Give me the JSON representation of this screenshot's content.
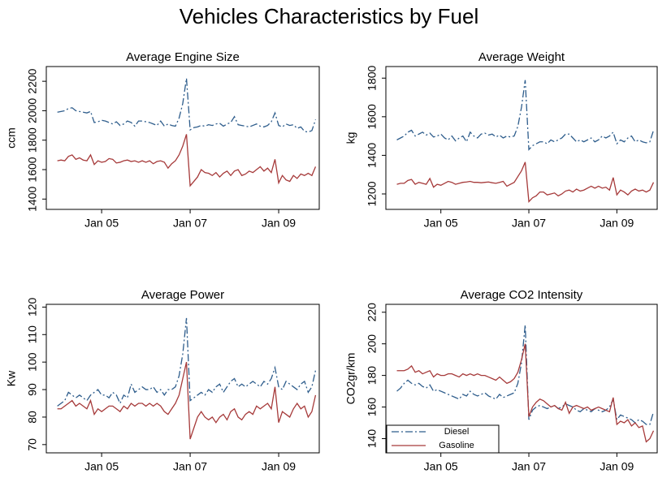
{
  "title": "Vehicles Characteristics by Fuel",
  "chart_data": [
    {
      "type": "line",
      "title": "Average Engine Size",
      "ylabel": "ccm",
      "x": [
        "2004-01",
        "2004-02",
        "2004-03",
        "2004-04",
        "2004-05",
        "2004-06",
        "2004-07",
        "2004-08",
        "2004-09",
        "2004-10",
        "2004-11",
        "2004-12",
        "2005-01",
        "2005-02",
        "2005-03",
        "2005-04",
        "2005-05",
        "2005-06",
        "2005-07",
        "2005-08",
        "2005-09",
        "2005-10",
        "2005-11",
        "2005-12",
        "2006-01",
        "2006-02",
        "2006-03",
        "2006-04",
        "2006-05",
        "2006-06",
        "2006-07",
        "2006-08",
        "2006-09",
        "2006-10",
        "2006-11",
        "2006-12",
        "2007-01",
        "2007-02",
        "2007-03",
        "2007-04",
        "2007-05",
        "2007-06",
        "2007-07",
        "2007-08",
        "2007-09",
        "2007-10",
        "2007-11",
        "2007-12",
        "2008-01",
        "2008-02",
        "2008-03",
        "2008-04",
        "2008-05",
        "2008-06",
        "2008-07",
        "2008-08",
        "2008-09",
        "2008-10",
        "2008-11",
        "2008-12",
        "2009-01",
        "2009-02",
        "2009-03",
        "2009-04",
        "2009-05",
        "2009-06",
        "2009-07",
        "2009-08",
        "2009-09",
        "2009-10",
        "2009-11"
      ],
      "xlim": [
        "2003-10",
        "2009-12"
      ],
      "xticks": [
        {
          "value": "2005-01",
          "label": "Jan 05"
        },
        {
          "value": "2007-01",
          "label": "Jan 07"
        },
        {
          "value": "2009-01",
          "label": "Jan 09"
        }
      ],
      "ylim": [
        1330,
        2300
      ],
      "yticks": [
        1400,
        1600,
        1800,
        2000,
        2200
      ],
      "series": [
        {
          "name": "Diesel",
          "color": "#2e5d8c",
          "dash": "dash-dot",
          "values": [
            1990,
            1995,
            2000,
            2015,
            2020,
            2000,
            1995,
            1990,
            1985,
            1995,
            1920,
            1925,
            1935,
            1930,
            1920,
            1910,
            1925,
            1900,
            1910,
            1930,
            1920,
            1895,
            1930,
            1930,
            1925,
            1920,
            1910,
            1900,
            1930,
            1895,
            1910,
            1900,
            1895,
            1950,
            2050,
            2220,
            1870,
            1885,
            1890,
            1900,
            1895,
            1905,
            1900,
            1910,
            1915,
            1895,
            1910,
            1920,
            1960,
            1905,
            1900,
            1895,
            1890,
            1900,
            1910,
            1895,
            1890,
            1900,
            1925,
            1985,
            1900,
            1890,
            1910,
            1900,
            1905,
            1880,
            1890,
            1860,
            1855,
            1865,
            1940
          ]
        },
        {
          "name": "Gasoline",
          "color": "#a63a3a",
          "dash": "solid",
          "values": [
            1660,
            1665,
            1660,
            1690,
            1700,
            1670,
            1680,
            1665,
            1660,
            1700,
            1635,
            1660,
            1650,
            1655,
            1675,
            1670,
            1645,
            1650,
            1660,
            1665,
            1655,
            1660,
            1650,
            1660,
            1650,
            1660,
            1640,
            1655,
            1660,
            1650,
            1610,
            1640,
            1660,
            1700,
            1760,
            1840,
            1490,
            1520,
            1550,
            1600,
            1580,
            1575,
            1560,
            1580,
            1550,
            1575,
            1590,
            1560,
            1590,
            1600,
            1560,
            1570,
            1590,
            1580,
            1600,
            1620,
            1590,
            1610,
            1580,
            1670,
            1510,
            1560,
            1530,
            1520,
            1560,
            1540,
            1570,
            1560,
            1575,
            1560,
            1620
          ]
        }
      ]
    },
    {
      "type": "line",
      "title": "Average Weight",
      "ylabel": "kg",
      "x": [
        "2004-01",
        "2004-02",
        "2004-03",
        "2004-04",
        "2004-05",
        "2004-06",
        "2004-07",
        "2004-08",
        "2004-09",
        "2004-10",
        "2004-11",
        "2004-12",
        "2005-01",
        "2005-02",
        "2005-03",
        "2005-04",
        "2005-05",
        "2005-06",
        "2005-07",
        "2005-08",
        "2005-09",
        "2005-10",
        "2005-11",
        "2005-12",
        "2006-01",
        "2006-02",
        "2006-03",
        "2006-04",
        "2006-05",
        "2006-06",
        "2006-07",
        "2006-08",
        "2006-09",
        "2006-10",
        "2006-11",
        "2006-12",
        "2007-01",
        "2007-02",
        "2007-03",
        "2007-04",
        "2007-05",
        "2007-06",
        "2007-07",
        "2007-08",
        "2007-09",
        "2007-10",
        "2007-11",
        "2007-12",
        "2008-01",
        "2008-02",
        "2008-03",
        "2008-04",
        "2008-05",
        "2008-06",
        "2008-07",
        "2008-08",
        "2008-09",
        "2008-10",
        "2008-11",
        "2008-12",
        "2009-01",
        "2009-02",
        "2009-03",
        "2009-04",
        "2009-05",
        "2009-06",
        "2009-07",
        "2009-08",
        "2009-09",
        "2009-10",
        "2009-11"
      ],
      "xlim": [
        "2003-10",
        "2009-12"
      ],
      "xticks": [
        {
          "value": "2005-01",
          "label": "Jan 05"
        },
        {
          "value": "2007-01",
          "label": "Jan 07"
        },
        {
          "value": "2009-01",
          "label": "Jan 09"
        }
      ],
      "ylim": [
        1120,
        1860
      ],
      "yticks": [
        1200,
        1400,
        1600,
        1800
      ],
      "series": [
        {
          "name": "Diesel",
          "color": "#2e5d8c",
          "dash": "dash-dot",
          "values": [
            1480,
            1490,
            1500,
            1520,
            1530,
            1500,
            1510,
            1520,
            1505,
            1515,
            1495,
            1500,
            1510,
            1490,
            1480,
            1500,
            1475,
            1490,
            1500,
            1470,
            1520,
            1500,
            1490,
            1510,
            1515,
            1505,
            1510,
            1495,
            1505,
            1490,
            1500,
            1495,
            1500,
            1550,
            1650,
            1790,
            1430,
            1450,
            1460,
            1470,
            1470,
            1460,
            1480,
            1470,
            1480,
            1490,
            1510,
            1510,
            1490,
            1470,
            1480,
            1470,
            1480,
            1490,
            1470,
            1480,
            1500,
            1490,
            1500,
            1520,
            1460,
            1480,
            1470,
            1490,
            1500,
            1470,
            1480,
            1470,
            1465,
            1470,
            1530
          ]
        },
        {
          "name": "Gasoline",
          "color": "#a63a3a",
          "dash": "solid",
          "values": [
            1250,
            1255,
            1255,
            1270,
            1275,
            1250,
            1260,
            1255,
            1250,
            1280,
            1235,
            1250,
            1245,
            1255,
            1265,
            1260,
            1250,
            1255,
            1260,
            1262,
            1265,
            1260,
            1260,
            1258,
            1260,
            1262,
            1258,
            1255,
            1260,
            1265,
            1240,
            1250,
            1260,
            1290,
            1320,
            1365,
            1160,
            1180,
            1190,
            1210,
            1210,
            1195,
            1200,
            1205,
            1190,
            1200,
            1215,
            1220,
            1210,
            1225,
            1215,
            1220,
            1230,
            1240,
            1230,
            1240,
            1230,
            1235,
            1220,
            1285,
            1195,
            1220,
            1210,
            1195,
            1215,
            1225,
            1215,
            1220,
            1210,
            1220,
            1260
          ]
        }
      ]
    },
    {
      "type": "line",
      "title": "Average Power",
      "ylabel": "Kw",
      "x": [
        "2004-01",
        "2004-02",
        "2004-03",
        "2004-04",
        "2004-05",
        "2004-06",
        "2004-07",
        "2004-08",
        "2004-09",
        "2004-10",
        "2004-11",
        "2004-12",
        "2005-01",
        "2005-02",
        "2005-03",
        "2005-04",
        "2005-05",
        "2005-06",
        "2005-07",
        "2005-08",
        "2005-09",
        "2005-10",
        "2005-11",
        "2005-12",
        "2006-01",
        "2006-02",
        "2006-03",
        "2006-04",
        "2006-05",
        "2006-06",
        "2006-07",
        "2006-08",
        "2006-09",
        "2006-10",
        "2006-11",
        "2006-12",
        "2007-01",
        "2007-02",
        "2007-03",
        "2007-04",
        "2007-05",
        "2007-06",
        "2007-07",
        "2007-08",
        "2007-09",
        "2007-10",
        "2007-11",
        "2007-12",
        "2008-01",
        "2008-02",
        "2008-03",
        "2008-04",
        "2008-05",
        "2008-06",
        "2008-07",
        "2008-08",
        "2008-09",
        "2008-10",
        "2008-11",
        "2008-12",
        "2009-01",
        "2009-02",
        "2009-03",
        "2009-04",
        "2009-05",
        "2009-06",
        "2009-07",
        "2009-08",
        "2009-09",
        "2009-10",
        "2009-11"
      ],
      "xlim": [
        "2003-10",
        "2009-12"
      ],
      "xticks": [
        {
          "value": "2005-01",
          "label": "Jan 05"
        },
        {
          "value": "2007-01",
          "label": "Jan 07"
        },
        {
          "value": "2009-01",
          "label": "Jan 09"
        }
      ],
      "ylim": [
        67,
        121
      ],
      "yticks": [
        70,
        80,
        90,
        100,
        110,
        120
      ],
      "series": [
        {
          "name": "Diesel",
          "color": "#2e5d8c",
          "dash": "dash-dot",
          "values": [
            84,
            85,
            86,
            89,
            88,
            87,
            88,
            87,
            86,
            88,
            89,
            90,
            88,
            88,
            87,
            89,
            88,
            85,
            88,
            87,
            92,
            89,
            90,
            91,
            90,
            90,
            91,
            89,
            90,
            88,
            90,
            90,
            91,
            95,
            103,
            116,
            86,
            87,
            88,
            89,
            88,
            90,
            89,
            91,
            92,
            89,
            91,
            93,
            94,
            91,
            92,
            91,
            92,
            93,
            92,
            91,
            93,
            92,
            94,
            98,
            91,
            90,
            93,
            92,
            91,
            90,
            92,
            93,
            89,
            91,
            97
          ]
        },
        {
          "name": "Gasoline",
          "color": "#a63a3a",
          "dash": "solid",
          "values": [
            83,
            83,
            84,
            85,
            86,
            84,
            85,
            84,
            83,
            86,
            81,
            83,
            82,
            83,
            84,
            84,
            83,
            82,
            84,
            83,
            85,
            84,
            85,
            85,
            84,
            85,
            84,
            85,
            84,
            82,
            81,
            83,
            85,
            88,
            94,
            100,
            72,
            76,
            80,
            82,
            80,
            79,
            80,
            78,
            80,
            81,
            79,
            82,
            83,
            80,
            79,
            81,
            82,
            81,
            84,
            83,
            84,
            85,
            83,
            91,
            78,
            82,
            81,
            80,
            83,
            85,
            83,
            84,
            80,
            82,
            88
          ]
        }
      ]
    },
    {
      "type": "line",
      "title": "Average CO2 Intensity",
      "ylabel": "CO2gr/km",
      "legend": "lower left",
      "x": [
        "2004-01",
        "2004-02",
        "2004-03",
        "2004-04",
        "2004-05",
        "2004-06",
        "2004-07",
        "2004-08",
        "2004-09",
        "2004-10",
        "2004-11",
        "2004-12",
        "2005-01",
        "2005-02",
        "2005-03",
        "2005-04",
        "2005-05",
        "2005-06",
        "2005-07",
        "2005-08",
        "2005-09",
        "2005-10",
        "2005-11",
        "2005-12",
        "2006-01",
        "2006-02",
        "2006-03",
        "2006-04",
        "2006-05",
        "2006-06",
        "2006-07",
        "2006-08",
        "2006-09",
        "2006-10",
        "2006-11",
        "2006-12",
        "2007-01",
        "2007-02",
        "2007-03",
        "2007-04",
        "2007-05",
        "2007-06",
        "2007-07",
        "2007-08",
        "2007-09",
        "2007-10",
        "2007-11",
        "2007-12",
        "2008-01",
        "2008-02",
        "2008-03",
        "2008-04",
        "2008-05",
        "2008-06",
        "2008-07",
        "2008-08",
        "2008-09",
        "2008-10",
        "2008-11",
        "2008-12",
        "2009-01",
        "2009-02",
        "2009-03",
        "2009-04",
        "2009-05",
        "2009-06",
        "2009-07",
        "2009-08",
        "2009-09",
        "2009-10",
        "2009-11"
      ],
      "xlim": [
        "2003-10",
        "2009-12"
      ],
      "xticks": [
        {
          "value": "2005-01",
          "label": "Jan 05"
        },
        {
          "value": "2007-01",
          "label": "Jan 07"
        },
        {
          "value": "2009-01",
          "label": "Jan 09"
        }
      ],
      "ylim": [
        131,
        225
      ],
      "yticks": [
        140,
        160,
        180,
        200,
        220
      ],
      "series": [
        {
          "name": "Diesel",
          "color": "#2e5d8c",
          "dash": "dash-dot",
          "values": [
            170,
            172,
            175,
            177,
            175,
            174,
            175,
            173,
            172,
            174,
            170,
            171,
            170,
            169,
            168,
            167,
            166,
            165,
            168,
            167,
            170,
            168,
            167,
            168,
            169,
            167,
            166,
            165,
            168,
            166,
            167,
            168,
            169,
            175,
            188,
            212,
            152,
            158,
            160,
            161,
            160,
            159,
            160,
            161,
            159,
            160,
            162,
            161,
            160,
            158,
            157,
            159,
            158,
            157,
            159,
            158,
            157,
            158,
            160,
            165,
            152,
            155,
            154,
            153,
            152,
            150,
            152,
            151,
            149,
            149,
            157
          ]
        },
        {
          "name": "Gasoline",
          "color": "#a63a3a",
          "dash": "solid",
          "values": [
            183,
            183,
            183,
            184,
            186,
            182,
            183,
            181,
            182,
            183,
            179,
            181,
            180,
            180,
            181,
            181,
            180,
            179,
            181,
            180,
            181,
            180,
            181,
            180,
            180,
            179,
            178,
            177,
            179,
            177,
            175,
            176,
            178,
            182,
            190,
            200,
            154,
            160,
            163,
            165,
            164,
            162,
            160,
            161,
            159,
            158,
            163,
            156,
            160,
            161,
            160,
            159,
            160,
            158,
            159,
            160,
            159,
            158,
            157,
            166,
            149,
            151,
            150,
            152,
            148,
            150,
            147,
            148,
            138,
            140,
            145
          ]
        }
      ]
    }
  ]
}
